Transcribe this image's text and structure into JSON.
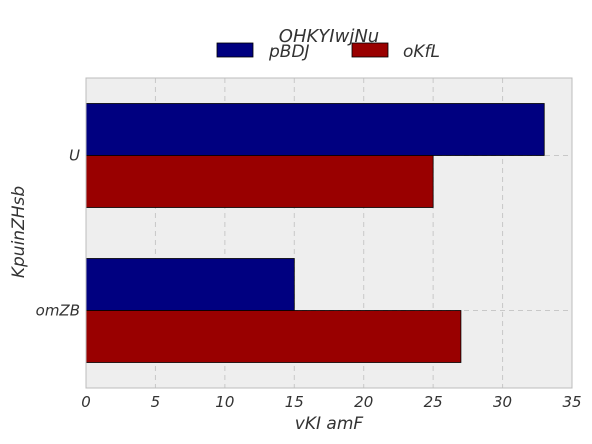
{
  "chart_data": {
    "type": "bar",
    "orientation": "horizontal",
    "legend_title": "OHKYIwjNu",
    "xlabel": "vKI amF",
    "ylabel": "KpuinZHsb",
    "categories": [
      "U",
      "omZB"
    ],
    "series": [
      {
        "name": "pBDJ",
        "values": [
          33,
          15
        ],
        "color": "#000080"
      },
      {
        "name": "oKfL",
        "values": [
          25,
          27
        ],
        "color": "#990000"
      }
    ],
    "xlim": [
      0,
      35
    ],
    "xticks": [
      "0",
      "5",
      "10",
      "15",
      "20",
      "25",
      "30",
      "35"
    ],
    "grid": true,
    "legend_position": "top-center",
    "plot_background": "#eeeeee"
  }
}
